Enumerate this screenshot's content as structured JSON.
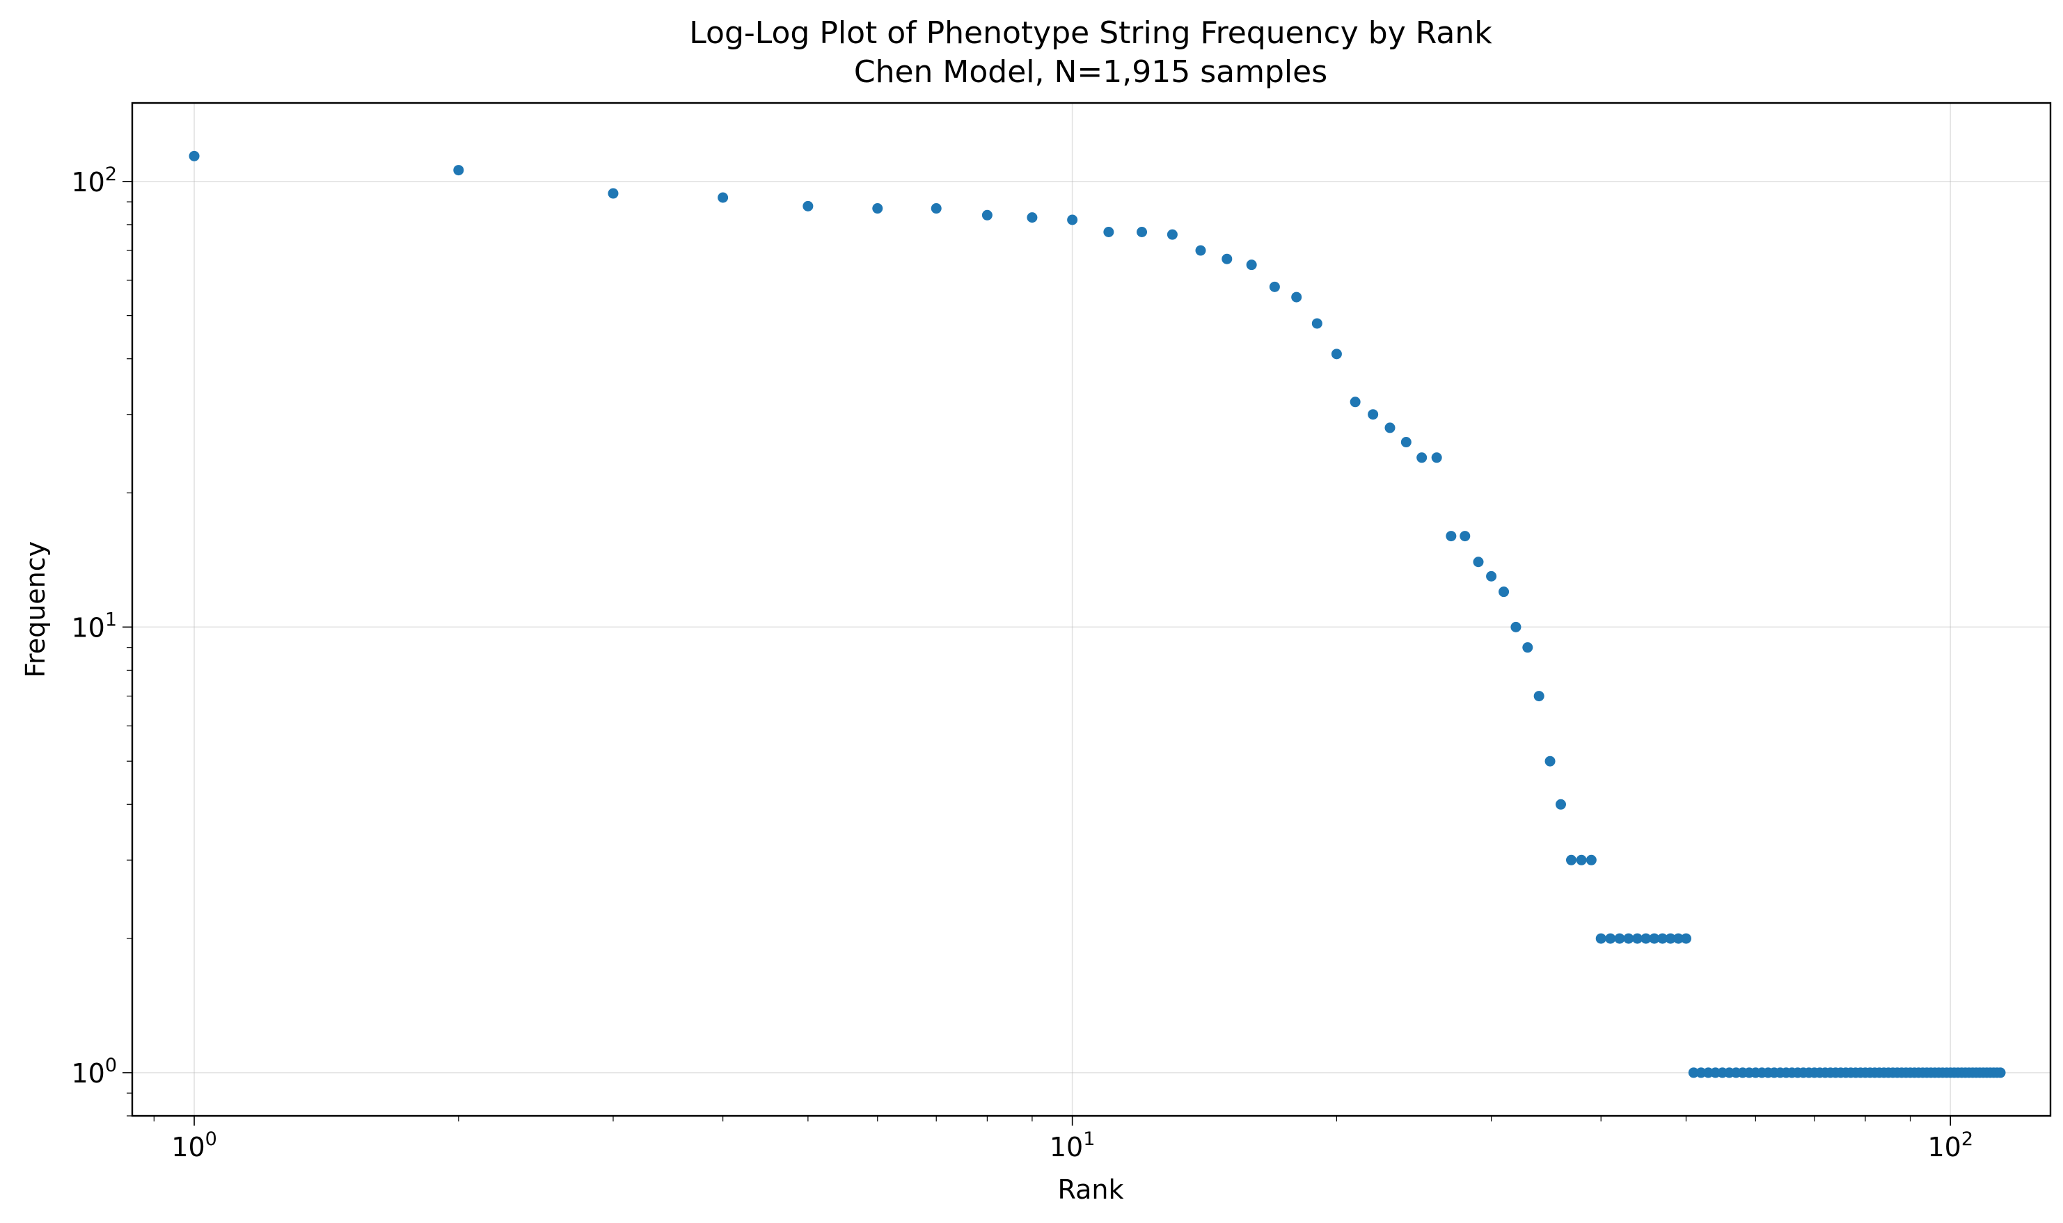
{
  "chart_data": {
    "type": "scatter",
    "title": "Log-Log Plot of Phenotype String Frequency by Rank",
    "subtitle": "Chen Model, N=1,915 samples",
    "xlabel": "Rank",
    "ylabel": "Frequency",
    "xscale": "log",
    "yscale": "log",
    "xlim": [
      0.85,
      130
    ],
    "ylim": [
      0.8,
      150
    ],
    "grid": true,
    "x_ticks": [
      {
        "value": 1,
        "base": "10",
        "exp": "0"
      },
      {
        "value": 10,
        "base": "10",
        "exp": "1"
      },
      {
        "value": 100,
        "base": "10",
        "exp": "2"
      }
    ],
    "y_ticks": [
      {
        "value": 1,
        "base": "10",
        "exp": "0"
      },
      {
        "value": 10,
        "base": "10",
        "exp": "1"
      },
      {
        "value": 100,
        "base": "10",
        "exp": "2"
      }
    ],
    "marker_color": "#1f77b4",
    "series": [
      {
        "x": [
          1,
          2,
          3,
          4,
          5,
          6,
          7,
          8,
          9,
          10,
          11,
          12,
          13,
          14,
          15,
          16,
          17,
          18,
          19,
          20,
          21,
          22,
          23,
          24,
          25,
          26,
          27,
          28,
          29,
          30,
          31,
          32,
          33,
          34,
          35,
          36,
          37,
          38,
          39,
          40,
          41,
          42,
          43,
          44,
          45,
          46,
          47,
          48,
          49,
          50,
          51,
          52,
          53,
          54,
          55,
          56,
          57,
          58,
          59,
          60,
          61,
          62,
          63,
          64,
          65,
          66,
          67,
          68,
          69,
          70,
          71,
          72,
          73,
          74,
          75,
          76,
          77,
          78,
          79,
          80,
          81,
          82,
          83,
          84,
          85,
          86,
          87,
          88,
          89,
          90,
          91,
          92,
          93,
          94,
          95,
          96,
          97,
          98,
          99,
          100,
          101,
          102,
          103,
          104,
          105,
          106,
          107,
          108,
          109,
          110,
          111,
          112,
          113,
          114
        ],
        "y": [
          114,
          106,
          94,
          92,
          88,
          87,
          87,
          84,
          83,
          82,
          77,
          77,
          76,
          70,
          67,
          65,
          58,
          55,
          48,
          41,
          32,
          30,
          28,
          26,
          24,
          24,
          16,
          16,
          14,
          13,
          12,
          10,
          9,
          7,
          5,
          4,
          3,
          3,
          3,
          2,
          2,
          2,
          2,
          2,
          2,
          2,
          2,
          2,
          2,
          2,
          1,
          1,
          1,
          1,
          1,
          1,
          1,
          1,
          1,
          1,
          1,
          1,
          1,
          1,
          1,
          1,
          1,
          1,
          1,
          1,
          1,
          1,
          1,
          1,
          1,
          1,
          1,
          1,
          1,
          1,
          1,
          1,
          1,
          1,
          1,
          1,
          1,
          1,
          1,
          1,
          1,
          1,
          1,
          1,
          1,
          1,
          1,
          1,
          1,
          1,
          1,
          1,
          1,
          1,
          1,
          1,
          1,
          1,
          1,
          1,
          1,
          1,
          1,
          1
        ]
      }
    ]
  }
}
